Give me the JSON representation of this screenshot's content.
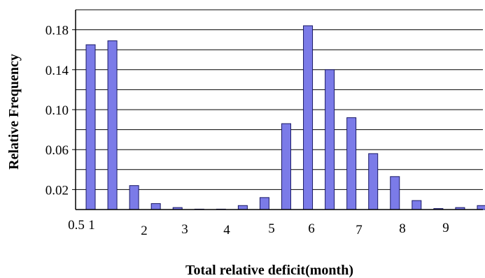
{
  "chart_data": {
    "type": "bar",
    "title": "",
    "xlabel": "Total relative deficit(month)",
    "ylabel": "Relative Frequency",
    "ylim": [
      0,
      0.2
    ],
    "grid": true,
    "legend": "none",
    "bar_color": "#7b7be8",
    "bar_edge_color": "#1a1a66",
    "x_ticks": [
      "0.5",
      "1",
      "2",
      "3",
      "4",
      "5",
      "6",
      "7",
      "8",
      "9"
    ],
    "y_ticks": [
      "0.02",
      "0.06",
      "0.10",
      "0.14",
      "0.18"
    ],
    "values": [
      0.165,
      0.169,
      0.024,
      0.006,
      0.002,
      0.0,
      0.0,
      0.004,
      0.012,
      0.086,
      0.184,
      0.14,
      0.092,
      0.056,
      0.033,
      0.009,
      0.001,
      0.002,
      0.004
    ]
  }
}
